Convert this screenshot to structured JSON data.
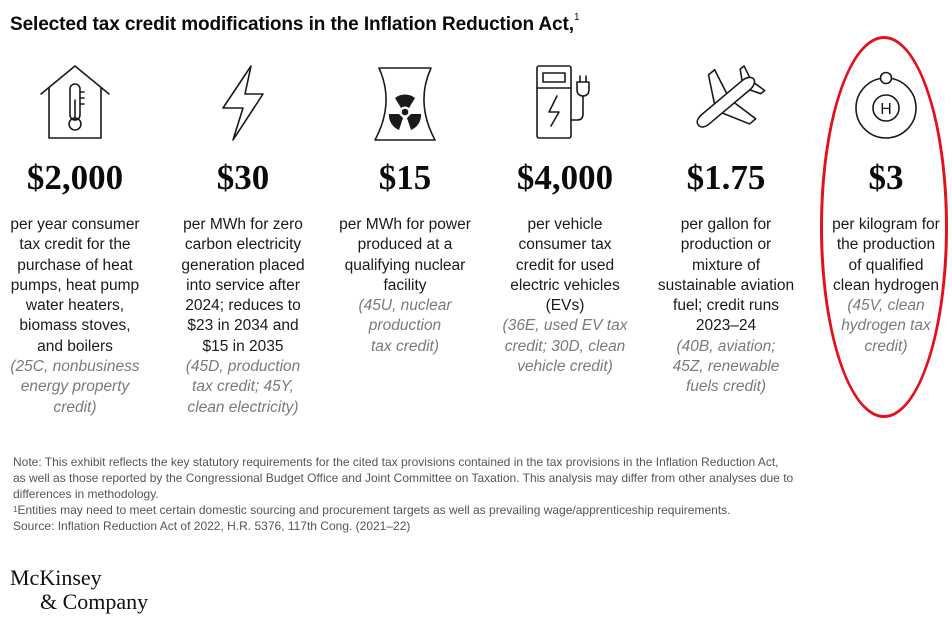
{
  "title": "Selected tax credit modifications in the Inflation Reduction Act,",
  "title_sup": "1",
  "columns": [
    {
      "icon": "house-thermometer-icon",
      "amount": "$2,000",
      "desc": [
        "per year consumer",
        "tax credit for the",
        "purchase of heat",
        "pumps, heat pump",
        "water heaters,",
        "biomass stoves,",
        "and boilers"
      ],
      "cite": [
        "(25C, nonbusiness",
        "energy property",
        "credit)"
      ]
    },
    {
      "icon": "lightning-bolt-icon",
      "amount": "$30",
      "desc": [
        "per MWh for zero",
        "carbon electricity",
        "generation placed",
        "into service after",
        "2024; reduces to",
        "$23 in 2034 and",
        "$15 in 2035"
      ],
      "cite": [
        "(45D, production",
        "tax credit; 45Y,",
        "clean electricity)"
      ]
    },
    {
      "icon": "nuclear-cooling-tower-icon",
      "amount": "$15",
      "desc": [
        "per MWh for power",
        "produced at a",
        "qualifying nuclear",
        "facility"
      ],
      "cite": [
        "(45U, nuclear",
        "production",
        "tax credit)"
      ]
    },
    {
      "icon": "ev-charging-station-icon",
      "amount": "$4,000",
      "desc": [
        "per vehicle",
        "consumer tax",
        "credit for used",
        "electric vehicles",
        "(EVs)"
      ],
      "cite": [
        "(36E, used EV tax",
        "credit; 30D, clean",
        "vehicle credit)"
      ]
    },
    {
      "icon": "airplane-icon",
      "amount": "$1.75",
      "desc": [
        "per gallon for",
        "production or",
        "mixture of",
        "sustainable aviation",
        "fuel; credit runs",
        "2023–24"
      ],
      "cite": [
        "(40B, aviation;",
        "45Z, renewable",
        "fuels credit)"
      ]
    },
    {
      "icon": "hydrogen-atom-icon",
      "icon_letter": "H",
      "amount": "$3",
      "desc": [
        "per kilogram for",
        "the production",
        "of qualified",
        "clean hydrogen"
      ],
      "cite": [
        "(45V, clean",
        "hydrogen tax",
        "credit)"
      ]
    }
  ],
  "notes": {
    "note_lines": [
      "Note: This exhibit reflects the key statutory requirements for the cited tax provisions contained in the tax provisions in the Inflation Reduction Act,",
      "as well as those reported by the Congressional Budget Office and Joint Committee on Taxation. This analysis may differ from other analyses due to",
      "differences in methodology."
    ],
    "footnote_mark": "1",
    "footnote": "Entities may need to meet certain domestic sourcing and procurement targets as well as prevailing wage/apprenticeship requirements.",
    "source": "Source: Inflation Reduction Act of 2022, H.R. 5376, 117th Cong. (2021–22)"
  },
  "logo": {
    "line1": "McKinsey",
    "line2": "& Company"
  },
  "colors": {
    "highlight_circle": "#e3101e",
    "citation_gray": "#7a7a7a",
    "note_gray": "#555555"
  }
}
